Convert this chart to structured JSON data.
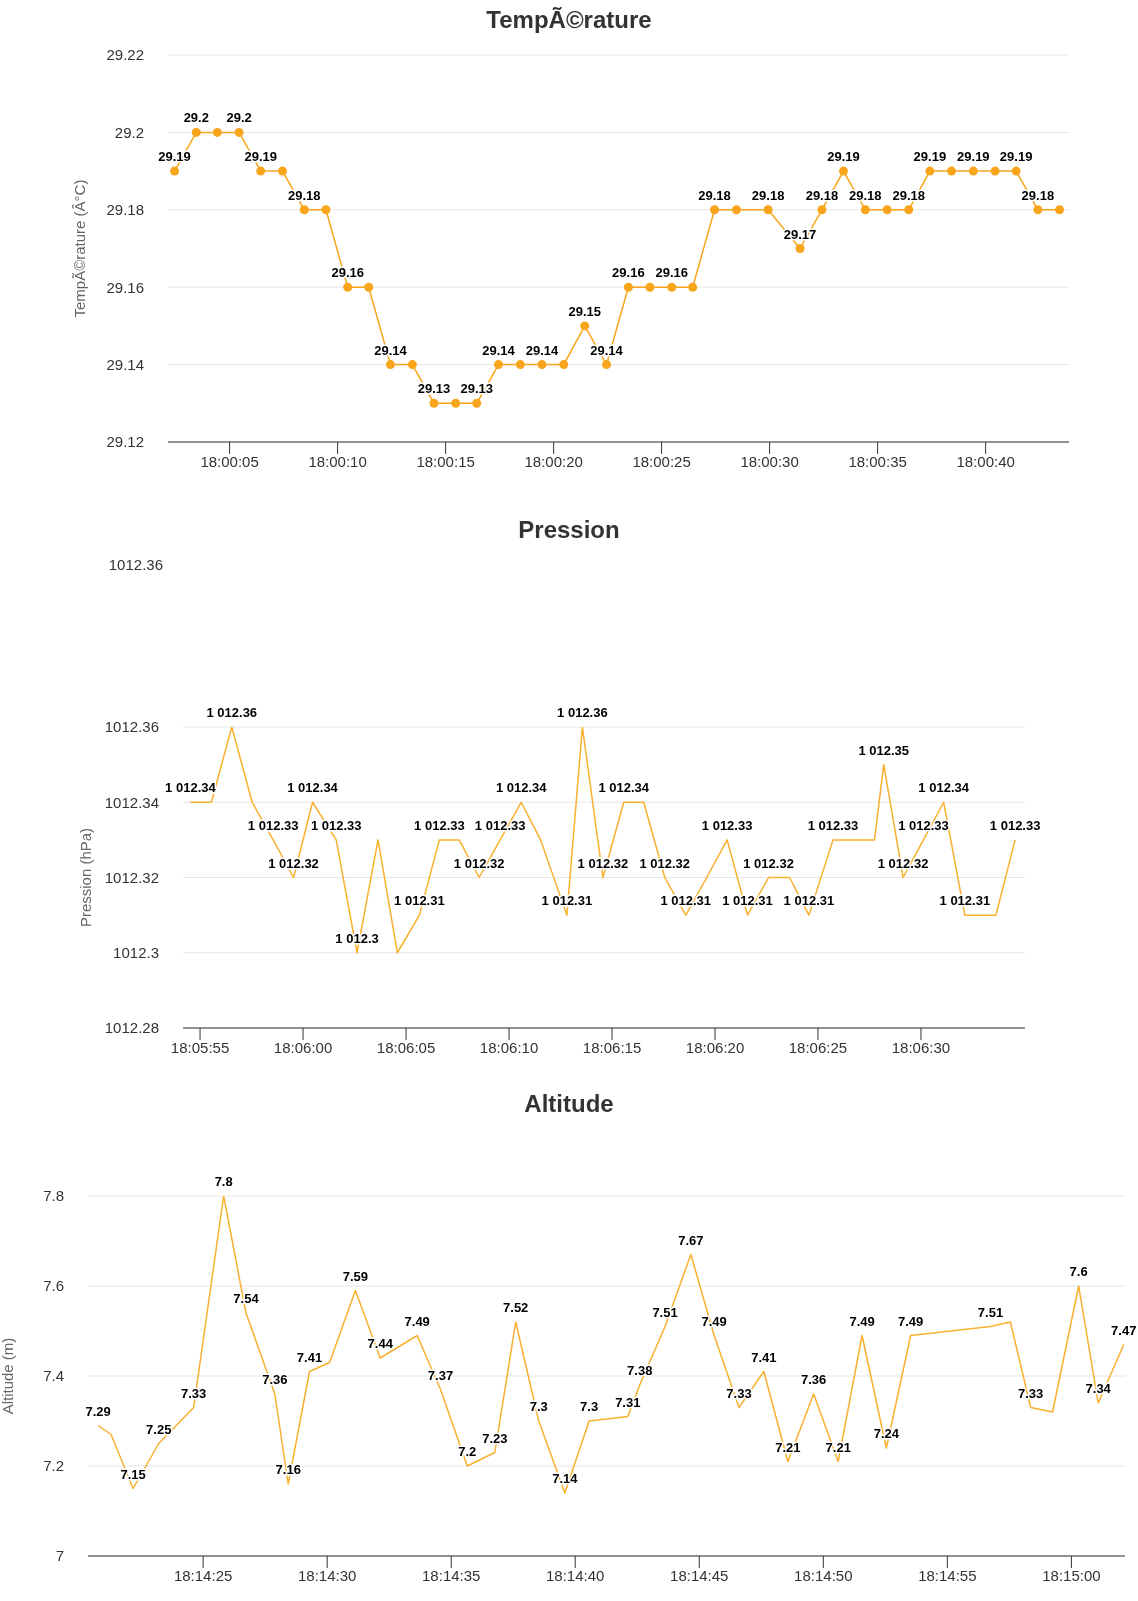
{
  "chart_data": [
    {
      "type": "line",
      "title": "TempÃ©rature",
      "ylabel": "TempÃ©rature (Â°C)",
      "color": "#f8a51b",
      "marker": "circle",
      "grid": "y",
      "x": [
        18.000681,
        18.000961,
        18.001231,
        18.001511,
        18.001789,
        18.002069,
        18.00235,
        18.002628,
        18.002908,
        18.003178,
        18.003458,
        18.003739,
        18.004017,
        18.004297,
        18.004567,
        18.004847,
        18.005128,
        18.005406,
        18.005686,
        18.005956,
        18.006236,
        18.006517,
        18.006794,
        18.007075,
        18.007344,
        18.007625,
        18.007906,
        18.008314,
        18.008725,
        18.009006,
        18.009283,
        18.009564,
        18.009844,
        18.010122,
        18.010394,
        18.010672,
        18.010953,
        18.011233,
        18.011503,
        18.011783,
        18.012061
      ],
      "values": [
        29.19,
        29.2,
        29.2,
        29.2,
        29.19,
        29.19,
        29.18,
        29.18,
        29.16,
        29.16,
        29.14,
        29.14,
        29.13,
        29.13,
        29.13,
        29.14,
        29.14,
        29.14,
        29.14,
        29.15,
        29.14,
        29.16,
        29.16,
        29.16,
        29.16,
        29.18,
        29.18,
        29.18,
        29.17,
        29.18,
        29.19,
        29.18,
        29.18,
        29.18,
        29.19,
        29.19,
        29.19,
        29.19,
        29.19,
        29.18,
        29.18
      ],
      "value_labels": [
        "29.19",
        "29.2",
        null,
        "29.2",
        "29.19",
        null,
        "29.18",
        null,
        "29.16",
        null,
        "29.14",
        null,
        "29.13",
        null,
        "29.13",
        "29.14",
        null,
        "29.14",
        null,
        "29.15",
        "29.14",
        "29.16",
        null,
        "29.16",
        null,
        "29.18",
        null,
        "29.18",
        "29.17",
        "29.18",
        "29.19",
        "29.18",
        null,
        "29.18",
        "29.19",
        null,
        "29.19",
        null,
        "29.19",
        "29.18",
        null
      ],
      "xlim": [
        18.000597,
        18.012183
      ],
      "xticks": [
        {
          "value": 18.001389,
          "label": "18:00:05"
        },
        {
          "value": 18.002778,
          "label": "18:00:10"
        },
        {
          "value": 18.004167,
          "label": "18:00:15"
        },
        {
          "value": 18.005556,
          "label": "18:00:20"
        },
        {
          "value": 18.006944,
          "label": "18:00:25"
        },
        {
          "value": 18.008333,
          "label": "18:00:30"
        },
        {
          "value": 18.009722,
          "label": "18:00:35"
        },
        {
          "value": 18.011111,
          "label": "18:00:40"
        }
      ],
      "ylim": [
        29.12,
        29.22
      ],
      "yticks": [
        29.12,
        29.14,
        29.16,
        29.18,
        29.2,
        29.22
      ]
    },
    {
      "type": "line",
      "title": "Pression",
      "ylabel": "Pression (hPa)",
      "color": "#f8b02e",
      "marker": "none",
      "grid": "y",
      "annotations": [
        "1012.36"
      ],
      "x": [
        18.098481,
        18.098764,
        18.099039,
        18.099314,
        18.099597,
        18.099872,
        18.100128,
        18.100447,
        18.100728,
        18.101011,
        18.101272,
        18.101569,
        18.101839,
        18.102106,
        18.102375,
        18.102658,
        18.102942,
        18.103203,
        18.103558,
        18.103767,
        18.104044,
        18.104325,
        18.104594,
        18.104878,
        18.105161,
        18.105444,
        18.105719,
        18.105994,
        18.106278,
        18.106561,
        18.106822,
        18.107147,
        18.107417,
        18.107706,
        18.107831,
        18.108092,
        18.108367,
        18.108639,
        18.108925,
        18.109344,
        18.109603
      ],
      "values": [
        1012.34,
        1012.34,
        1012.36,
        1012.34,
        1012.33,
        1012.32,
        1012.34,
        1012.33,
        1012.3,
        1012.33,
        1012.3,
        1012.31,
        1012.33,
        1012.33,
        1012.32,
        1012.33,
        1012.34,
        1012.33,
        1012.31,
        1012.36,
        1012.32,
        1012.34,
        1012.34,
        1012.32,
        1012.31,
        1012.32,
        1012.33,
        1012.31,
        1012.32,
        1012.32,
        1012.31,
        1012.33,
        1012.33,
        1012.33,
        1012.35,
        1012.32,
        1012.33,
        1012.34,
        1012.31,
        1012.31,
        1012.33
      ],
      "value_labels": [
        "1 012.34",
        null,
        "1 012.36",
        null,
        "1 012.33",
        "1 012.32",
        "1 012.34",
        "1 012.33",
        "1 012.3",
        null,
        null,
        "1 012.31",
        "1 012.33",
        null,
        "1 012.32",
        "1 012.33",
        "1 012.34",
        null,
        "1 012.31",
        "1 012.36",
        "1 012.32",
        "1 012.34",
        null,
        "1 012.32",
        "1 012.31",
        null,
        "1 012.33",
        "1 012.31",
        "1 012.32",
        null,
        "1 012.31",
        "1 012.33",
        null,
        null,
        "1 012.35",
        "1 012.32",
        "1 012.33",
        "1 012.34",
        "1 012.31",
        null,
        "1 012.33"
      ],
      "xlim": [
        18.098381,
        18.109736
      ],
      "xticks": [
        {
          "value": 18.098611,
          "label": "18:05:55"
        },
        {
          "value": 18.1,
          "label": "18:06:00"
        },
        {
          "value": 18.101389,
          "label": "18:06:05"
        },
        {
          "value": 18.102778,
          "label": "18:06:10"
        },
        {
          "value": 18.104167,
          "label": "18:06:15"
        },
        {
          "value": 18.105556,
          "label": "18:06:20"
        },
        {
          "value": 18.106944,
          "label": "18:06:25"
        },
        {
          "value": 18.108333,
          "label": "18:06:30"
        }
      ],
      "ylim": [
        1012.28,
        1012.36
      ],
      "yticks": [
        1012.28,
        1012.3,
        1012.32,
        1012.34,
        1012.36
      ]
    },
    {
      "type": "line",
      "title": "Altitude",
      "ylabel": "Altitude (m)",
      "color": "#f8b02e",
      "marker": "none",
      "grid": "y",
      "x": [
        18.239103,
        18.239247,
        18.239494,
        18.239781,
        18.240172,
        18.240508,
        18.240758,
        18.241081,
        18.241231,
        18.241469,
        18.241694,
        18.241983,
        18.242261,
        18.242675,
        18.242936,
        18.243236,
        18.243544,
        18.243778,
        18.244036,
        18.244328,
        18.2446,
        18.245033,
        18.245167,
        18.24545,
        18.245739,
        18.246,
        18.246278,
        18.246556,
        18.246825,
        18.247114,
        18.247389,
        18.247656,
        18.247928,
        18.2482,
        18.249094,
        18.249317,
        18.249544,
        18.249789,
        18.250081,
        18.2503,
        18.250586
      ],
      "values": [
        7.29,
        7.27,
        7.15,
        7.25,
        7.33,
        7.8,
        7.54,
        7.36,
        7.16,
        7.41,
        7.43,
        7.59,
        7.44,
        7.49,
        7.37,
        7.2,
        7.23,
        7.52,
        7.3,
        7.14,
        7.3,
        7.31,
        7.38,
        7.51,
        7.67,
        7.49,
        7.33,
        7.41,
        7.21,
        7.36,
        7.21,
        7.49,
        7.24,
        7.49,
        7.51,
        7.52,
        7.33,
        7.32,
        7.6,
        7.34,
        7.47
      ],
      "value_labels": [
        "7.29",
        null,
        "7.15",
        "7.25",
        "7.33",
        "7.8",
        "7.54",
        "7.36",
        "7.16",
        "7.41",
        null,
        "7.59",
        "7.44",
        "7.49",
        "7.37",
        "7.2",
        "7.23",
        "7.52",
        "7.3",
        "7.14",
        "7.3",
        "7.31",
        "7.38",
        "7.51",
        "7.67",
        "7.49",
        "7.33",
        "7.41",
        "7.21",
        "7.36",
        "7.21",
        "7.49",
        "7.24",
        "7.49",
        "7.51",
        null,
        "7.33",
        null,
        "7.6",
        "7.34",
        "7.47"
      ],
      "xlim": [
        18.238989,
        18.2506
      ],
      "xticks": [
        {
          "value": 18.240278,
          "label": "18:14:25"
        },
        {
          "value": 18.241667,
          "label": "18:14:30"
        },
        {
          "value": 18.243056,
          "label": "18:14:35"
        },
        {
          "value": 18.244444,
          "label": "18:14:40"
        },
        {
          "value": 18.245833,
          "label": "18:14:45"
        },
        {
          "value": 18.247222,
          "label": "18:14:50"
        },
        {
          "value": 18.248611,
          "label": "18:14:55"
        },
        {
          "value": 18.25,
          "label": "18:15:00"
        }
      ],
      "ylim": [
        7,
        7.8
      ],
      "yticks": [
        7,
        7.2,
        7.4,
        7.6,
        7.8
      ]
    }
  ]
}
